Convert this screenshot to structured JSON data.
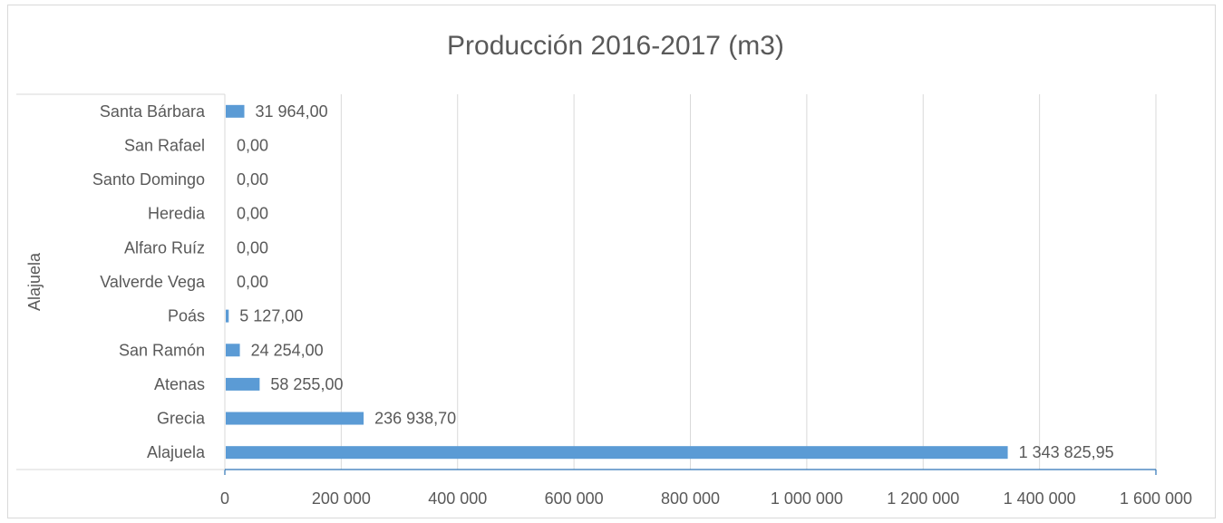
{
  "chart_data": {
    "type": "bar",
    "orientation": "horizontal",
    "title": "Producción 2016-2017 (m3)",
    "group_label": "Alajuela",
    "categories": [
      "Alajuela",
      "Grecia",
      "Atenas",
      "San Ramón",
      "Poás",
      "Valverde Vega",
      "Alfaro Ruíz",
      "Heredia",
      "Santo Domingo",
      "San Rafael",
      "Santa Bárbara"
    ],
    "values": [
      1343825.95,
      236938.7,
      58255.0,
      24254.0,
      5127.0,
      0,
      0,
      0,
      0,
      0,
      31964.0
    ],
    "data_labels": [
      "1 343 825,95",
      "236 938,70",
      "58 255,00",
      "24 254,00",
      "5 127,00",
      "0,00",
      "0,00",
      "0,00",
      "0,00",
      "0,00",
      "31 964,00"
    ],
    "xlim": [
      0,
      1600000
    ],
    "x_ticks": [
      0,
      200000,
      400000,
      600000,
      800000,
      1000000,
      1200000,
      1400000,
      1600000
    ],
    "x_tick_labels": [
      "0",
      "200 000",
      "400 000",
      "600 000",
      "800 000",
      "1 000 000",
      "1 200 000",
      "1 400 000",
      "1 600 000"
    ],
    "grid": "vertical",
    "legend": "none",
    "colors": {
      "bar": "#5b9bd5",
      "grid": "#d9d9d9",
      "axis": "#2e75b6",
      "text": "#595959"
    }
  }
}
